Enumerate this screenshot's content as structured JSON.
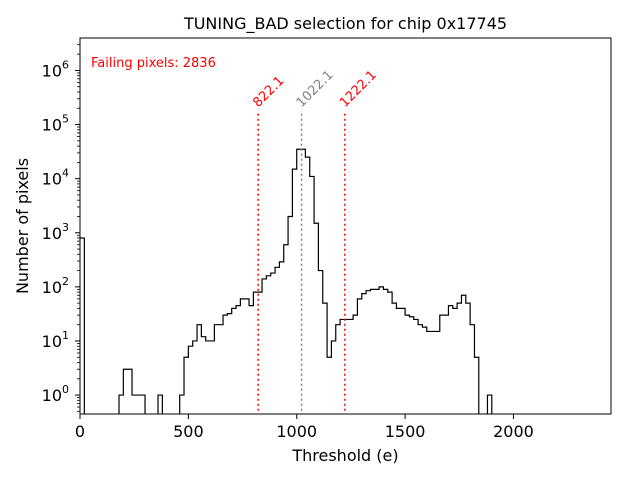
{
  "chart_data": {
    "type": "histogram",
    "title": "TUNING_BAD selection for chip 0x17745",
    "xlabel": "Threshold (e)",
    "ylabel": "Number of pixels",
    "xlim": [
      0,
      2450
    ],
    "ylim_log10": [
      -0.35,
      6.6
    ],
    "yscale": "log",
    "x_ticks": [
      0,
      500,
      1000,
      1500,
      2000
    ],
    "x_tick_labels": [
      "0",
      "500",
      "1000",
      "1500",
      "2000"
    ],
    "y_ticks": [
      {
        "base": "10",
        "exp": "0",
        "log10": 0
      },
      {
        "base": "10",
        "exp": "1",
        "log10": 1
      },
      {
        "base": "10",
        "exp": "2",
        "log10": 2
      },
      {
        "base": "10",
        "exp": "3",
        "log10": 3
      },
      {
        "base": "10",
        "exp": "4",
        "log10": 4
      },
      {
        "base": "10",
        "exp": "5",
        "log10": 5
      },
      {
        "base": "10",
        "exp": "6",
        "log10": 6
      }
    ],
    "bin_width": 20,
    "hist_steps": [
      [
        0,
        800
      ],
      [
        20,
        0
      ],
      [
        180,
        1
      ],
      [
        200,
        3
      ],
      [
        240,
        1
      ],
      [
        300,
        0
      ],
      [
        360,
        1
      ],
      [
        380,
        0
      ],
      [
        460,
        1
      ],
      [
        480,
        5
      ],
      [
        500,
        8
      ],
      [
        520,
        10
      ],
      [
        540,
        20
      ],
      [
        560,
        12
      ],
      [
        580,
        10
      ],
      [
        620,
        20
      ],
      [
        660,
        30
      ],
      [
        680,
        32
      ],
      [
        700,
        40
      ],
      [
        720,
        45
      ],
      [
        740,
        60
      ],
      [
        780,
        45
      ],
      [
        800,
        80
      ],
      [
        840,
        140
      ],
      [
        860,
        160
      ],
      [
        880,
        180
      ],
      [
        900,
        230
      ],
      [
        920,
        290
      ],
      [
        940,
        600
      ],
      [
        960,
        2000
      ],
      [
        980,
        15000
      ],
      [
        1000,
        35000
      ],
      [
        1040,
        25000
      ],
      [
        1060,
        11000
      ],
      [
        1080,
        1500
      ],
      [
        1100,
        200
      ],
      [
        1120,
        50
      ],
      [
        1140,
        5
      ],
      [
        1160,
        10
      ],
      [
        1180,
        20
      ],
      [
        1200,
        25
      ],
      [
        1260,
        30
      ],
      [
        1280,
        60
      ],
      [
        1300,
        75
      ],
      [
        1320,
        85
      ],
      [
        1340,
        90
      ],
      [
        1380,
        100
      ],
      [
        1400,
        90
      ],
      [
        1420,
        80
      ],
      [
        1440,
        50
      ],
      [
        1460,
        40
      ],
      [
        1500,
        30
      ],
      [
        1520,
        28
      ],
      [
        1540,
        25
      ],
      [
        1560,
        20
      ],
      [
        1580,
        18
      ],
      [
        1600,
        15
      ],
      [
        1640,
        15
      ],
      [
        1660,
        30
      ],
      [
        1700,
        45
      ],
      [
        1720,
        40
      ],
      [
        1740,
        50
      ],
      [
        1760,
        70
      ],
      [
        1780,
        50
      ],
      [
        1800,
        20
      ],
      [
        1820,
        5
      ],
      [
        1840,
        0
      ],
      [
        1880,
        1
      ],
      [
        1900,
        0
      ]
    ],
    "vlines": [
      {
        "x": 822.1,
        "label": "822.1",
        "color": "#ff0000"
      },
      {
        "x": 1022.1,
        "label": "1022.1",
        "color": "#808080"
      },
      {
        "x": 1222.1,
        "label": "1222.1",
        "color": "#ff0000"
      }
    ],
    "vline_top_log10": 5.2,
    "annotation": {
      "text": "Failing pixels: 2836",
      "color": "#ff0000"
    },
    "line_color": "#000000"
  }
}
